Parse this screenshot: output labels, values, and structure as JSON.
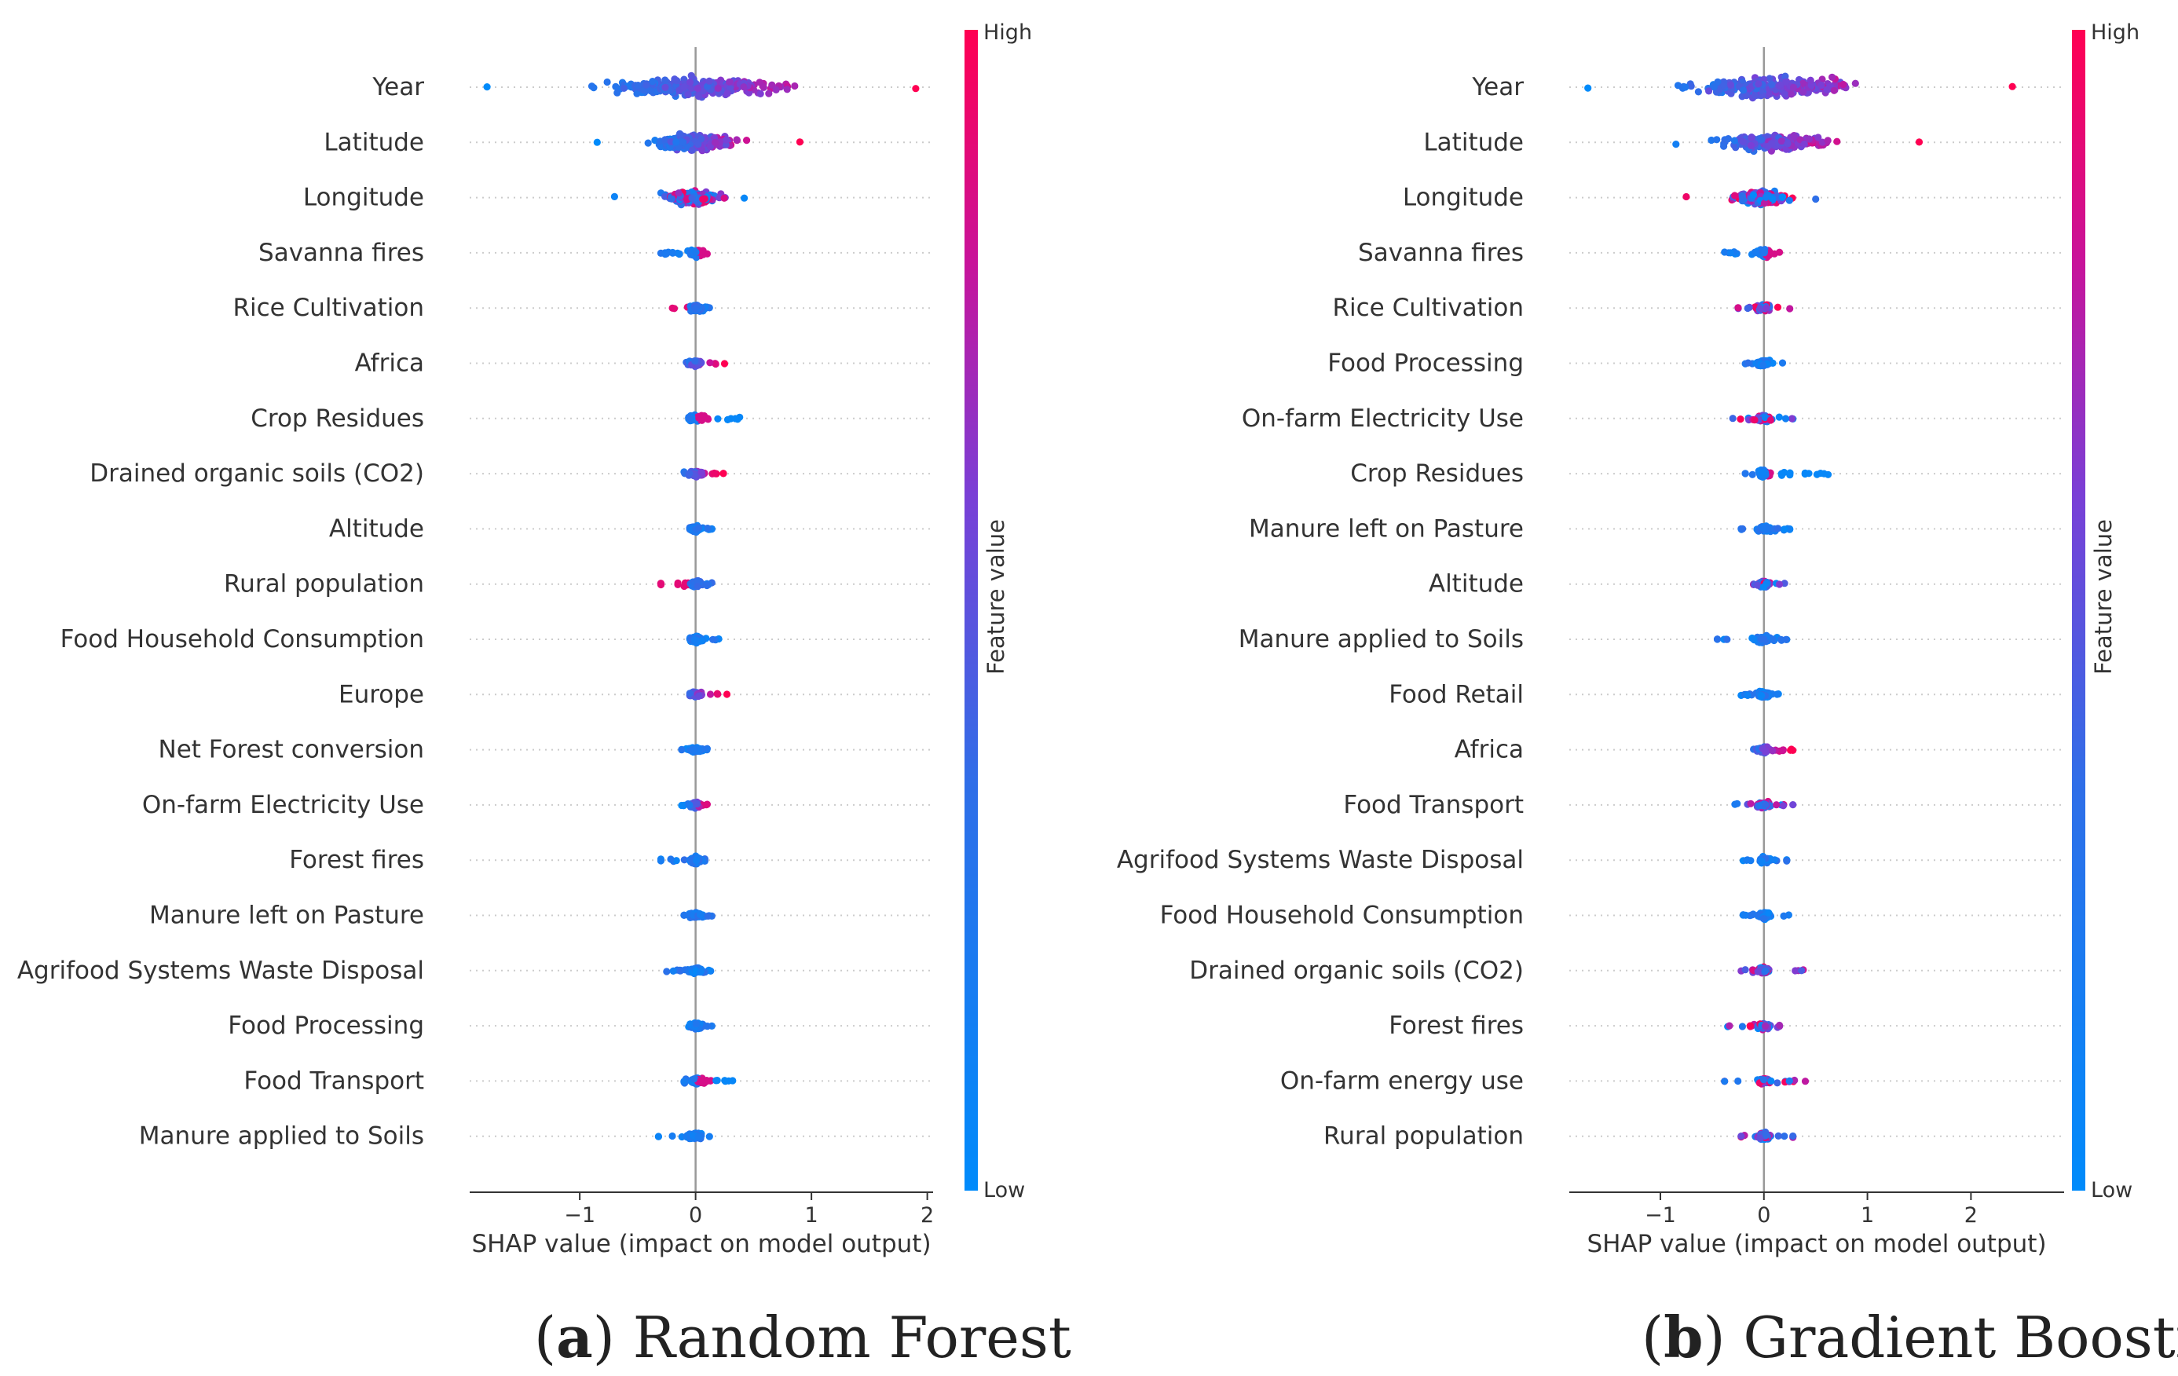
{
  "chart_data": [
    {
      "type": "scatter",
      "subtype": "shap-beeswarm",
      "panel_label": "a",
      "caption": "Random Forest",
      "xlabel": "SHAP value (impact on model output)",
      "xlim": [
        -1.95,
        2.05
      ],
      "xticks": [
        -1,
        0,
        1,
        2
      ],
      "xtick_labels": [
        "−1",
        "0",
        "1",
        "2"
      ],
      "colorbar": {
        "title": "Feature value",
        "high_label": "High",
        "low_label": "Low",
        "high_color": "#ff0052",
        "low_color": "#008bfb"
      },
      "features": [
        {
          "name": "Year",
          "min": -1.8,
          "max": 1.9,
          "spread": 1.0,
          "skew": "pos"
        },
        {
          "name": "Latitude",
          "min": -0.85,
          "max": 0.9,
          "spread": 0.8,
          "skew": "pos"
        },
        {
          "name": "Longitude",
          "min": -0.7,
          "max": 0.42,
          "spread": 0.6,
          "skew": "mixed"
        },
        {
          "name": "Savanna fires",
          "min": -0.3,
          "max": 0.1,
          "spread": 0.4,
          "skew": "neg"
        },
        {
          "name": "Rice Cultivation",
          "min": -0.2,
          "max": 0.12,
          "spread": 0.35,
          "skew": "negred"
        },
        {
          "name": "Africa",
          "min": -0.08,
          "max": 0.25,
          "spread": 0.3,
          "skew": "pos"
        },
        {
          "name": "Crop Residues",
          "min": -0.06,
          "max": 0.38,
          "spread": 0.3,
          "skew": "negblue"
        },
        {
          "name": "Drained organic soils (CO2)",
          "min": -0.1,
          "max": 0.24,
          "spread": 0.3,
          "skew": "pos"
        },
        {
          "name": "Altitude",
          "min": -0.05,
          "max": 0.14,
          "spread": 0.3,
          "skew": "neutral"
        },
        {
          "name": "Rural population",
          "min": -0.3,
          "max": 0.14,
          "spread": 0.3,
          "skew": "negred"
        },
        {
          "name": "Food Household Consumption",
          "min": -0.05,
          "max": 0.2,
          "spread": 0.3,
          "skew": "neutral"
        },
        {
          "name": "Europe",
          "min": -0.05,
          "max": 0.27,
          "spread": 0.25,
          "skew": "pos"
        },
        {
          "name": "Net Forest conversion",
          "min": -0.12,
          "max": 0.1,
          "spread": 0.25,
          "skew": "neutral"
        },
        {
          "name": "On-farm Electricity Use",
          "min": -0.12,
          "max": 0.1,
          "spread": 0.25,
          "skew": "pos"
        },
        {
          "name": "Forest fires",
          "min": -0.3,
          "max": 0.08,
          "spread": 0.3,
          "skew": "neutral"
        },
        {
          "name": "Manure left on Pasture",
          "min": -0.1,
          "max": 0.14,
          "spread": 0.25,
          "skew": "neutral"
        },
        {
          "name": "Agrifood Systems Waste Disposal",
          "min": -0.25,
          "max": 0.13,
          "spread": 0.3,
          "skew": "neutral"
        },
        {
          "name": "Food Processing",
          "min": -0.06,
          "max": 0.14,
          "spread": 0.3,
          "skew": "neutral"
        },
        {
          "name": "Food Transport",
          "min": -0.1,
          "max": 0.32,
          "spread": 0.3,
          "skew": "negblue"
        },
        {
          "name": "Manure applied to Soils",
          "min": -0.32,
          "max": 0.12,
          "spread": 0.25,
          "skew": "neutral"
        }
      ]
    },
    {
      "type": "scatter",
      "subtype": "shap-beeswarm",
      "panel_label": "b",
      "caption": "Gradient Boosting",
      "xlabel": "SHAP value (impact on model output)",
      "xlim": [
        -1.88,
        2.9
      ],
      "xticks": [
        -1,
        0,
        1,
        2
      ],
      "xtick_labels": [
        "−1",
        "0",
        "1",
        "2"
      ],
      "colorbar": {
        "title": "Feature value",
        "high_label": "High",
        "low_label": "Low",
        "high_color": "#ff0052",
        "low_color": "#008bfb"
      },
      "features": [
        {
          "name": "Year",
          "min": -1.7,
          "max": 2.4,
          "spread": 1.0,
          "skew": "pos"
        },
        {
          "name": "Latitude",
          "min": -0.85,
          "max": 1.5,
          "spread": 0.8,
          "skew": "pos"
        },
        {
          "name": "Longitude",
          "min": -0.75,
          "max": 0.5,
          "spread": 0.6,
          "skew": "mixed"
        },
        {
          "name": "Savanna fires",
          "min": -0.38,
          "max": 0.15,
          "spread": 0.4,
          "skew": "neg"
        },
        {
          "name": "Rice Cultivation",
          "min": -0.25,
          "max": 0.25,
          "spread": 0.35,
          "skew": "mixed"
        },
        {
          "name": "Food Processing",
          "min": -0.18,
          "max": 0.18,
          "spread": 0.3,
          "skew": "neutral"
        },
        {
          "name": "On-farm Electricity Use",
          "min": -0.3,
          "max": 0.28,
          "spread": 0.3,
          "skew": "mixed"
        },
        {
          "name": "Crop Residues",
          "min": -0.18,
          "max": 0.62,
          "spread": 0.3,
          "skew": "negblue"
        },
        {
          "name": "Manure left on Pasture",
          "min": -0.22,
          "max": 0.25,
          "spread": 0.3,
          "skew": "neutral"
        },
        {
          "name": "Altitude",
          "min": -0.1,
          "max": 0.2,
          "spread": 0.3,
          "skew": "mixed"
        },
        {
          "name": "Manure applied to Soils",
          "min": -0.45,
          "max": 0.22,
          "spread": 0.3,
          "skew": "neutral"
        },
        {
          "name": "Food Retail",
          "min": -0.22,
          "max": 0.14,
          "spread": 0.3,
          "skew": "neutral"
        },
        {
          "name": "Africa",
          "min": -0.1,
          "max": 0.28,
          "spread": 0.25,
          "skew": "pos"
        },
        {
          "name": "Food Transport",
          "min": -0.28,
          "max": 0.28,
          "spread": 0.3,
          "skew": "mixed"
        },
        {
          "name": "Agrifood Systems Waste Disposal",
          "min": -0.2,
          "max": 0.22,
          "spread": 0.3,
          "skew": "neutral"
        },
        {
          "name": "Food Household Consumption",
          "min": -0.2,
          "max": 0.24,
          "spread": 0.3,
          "skew": "neutral"
        },
        {
          "name": "Drained organic soils (CO2)",
          "min": -0.22,
          "max": 0.38,
          "spread": 0.3,
          "skew": "mixed"
        },
        {
          "name": "Forest fires",
          "min": -0.35,
          "max": 0.15,
          "spread": 0.3,
          "skew": "mixed"
        },
        {
          "name": "On-farm energy use",
          "min": -0.38,
          "max": 0.4,
          "spread": 0.3,
          "skew": "mixed"
        },
        {
          "name": "Rural population",
          "min": -0.22,
          "max": 0.28,
          "spread": 0.3,
          "skew": "mixed"
        }
      ]
    }
  ]
}
